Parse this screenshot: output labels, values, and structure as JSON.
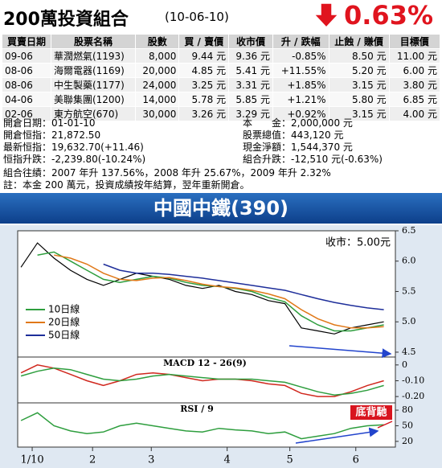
{
  "header": {
    "title": "200萬投資組合",
    "date": "(10-06-10)",
    "change": "0.63%"
  },
  "table": {
    "columns": [
      "買賣日期",
      "股票名稱",
      "股數",
      "買 / 賣價",
      "收市價",
      "升 / 跌幅",
      "止蝕 / 賺價",
      "目標價"
    ],
    "rows": [
      [
        "09-06",
        "華潤燃氣(1193)",
        "8,000",
        "9.44 元",
        "9.36 元",
        "-0.85%",
        "8.50 元",
        "11.00 元"
      ],
      [
        "08-06",
        "海爾電器(1169)",
        "20,000",
        "4.85 元",
        "5.41 元",
        "+11.55%",
        "5.20 元",
        "6.00 元"
      ],
      [
        "08-06",
        "中生製藥(1177)",
        "24,000",
        "3.25 元",
        "3.31 元",
        "+1.85%",
        "3.15 元",
        "3.80 元"
      ],
      [
        "04-06",
        "美聯集團(1200)",
        "14,000",
        "5.78 元",
        "5.85 元",
        "+1.21%",
        "5.80 元",
        "6.85 元"
      ],
      [
        "02-06",
        "東方航空(670)",
        "30,000",
        "3.26 元",
        "3.29 元",
        "+0.92%",
        "3.15 元",
        "4.00 元"
      ]
    ]
  },
  "summary": {
    "left": [
      "開倉日期：01-01-10",
      "開倉恒指：21,872.50",
      "最新恒指：19,632.70(+11.46)",
      "恒指升跌：-2,239.80(-10.24%)"
    ],
    "right": [
      "本　　金：2,000,000 元",
      "股票總值：443,120 元",
      "現金淨額：1,544,370 元",
      "組合升跌：-12,510 元(-0.63%)"
    ],
    "record": "組合往績：2007 年升 137.56%，2008 年升 25.67%，2009 年升 2.32%",
    "note": "註：本金 200 萬元，投資成績按年結算，翌年重新開倉。"
  },
  "banner": "中國中鐵(390)",
  "chart_data": [
    {
      "type": "line",
      "annotation": "收市：5.00元",
      "xlim": [
        -0.2,
        22.7
      ],
      "ylim": [
        4.42,
        6.5
      ],
      "yticks": [
        4.5,
        {
          "value": 5,
          "label": "5.0"
        },
        5.5,
        {
          "value": 6,
          "label": "6.0"
        },
        6.5
      ],
      "series": [
        {
          "color": "#000000",
          "values": [
            5.9,
            6.3,
            6.05,
            5.85,
            5.7,
            5.6,
            5.7,
            5.8,
            5.75,
            5.7,
            5.6,
            5.55,
            5.6,
            5.5,
            5.45,
            5.35,
            5.3,
            4.9,
            4.85,
            4.8,
            4.9,
            4.95,
            5.0
          ]
        },
        {
          "name": "10日線",
          "color": "#2e9e3e",
          "values": [
            null,
            6.1,
            6.15,
            6.0,
            5.85,
            5.7,
            5.65,
            5.7,
            5.75,
            5.72,
            5.65,
            5.6,
            5.58,
            5.55,
            5.5,
            5.4,
            5.33,
            5.1,
            4.95,
            4.85,
            4.85,
            4.9,
            4.95
          ]
        },
        {
          "name": "20日線",
          "color": "#e07818",
          "values": [
            null,
            null,
            6.1,
            6.05,
            5.95,
            5.8,
            5.7,
            5.68,
            5.72,
            5.73,
            5.68,
            5.62,
            5.58,
            5.56,
            5.52,
            5.46,
            5.38,
            5.2,
            5.05,
            4.95,
            4.9,
            4.9,
            4.92
          ]
        },
        {
          "name": "50日線",
          "color": "#1e2e9a",
          "values": [
            null,
            null,
            null,
            null,
            null,
            5.95,
            5.85,
            5.8,
            5.8,
            5.78,
            5.75,
            5.72,
            5.68,
            5.64,
            5.6,
            5.56,
            5.52,
            5.45,
            5.38,
            5.32,
            5.27,
            5.23,
            5.2
          ]
        }
      ]
    },
    {
      "type": "line",
      "title": "MACD 12 - 26(9)",
      "xlim": [
        -0.2,
        22.7
      ],
      "ylim": [
        -0.24,
        0.05
      ],
      "yticks": [
        0,
        {
          "value": -0.1,
          "label": "-0.10"
        },
        {
          "value": -0.2,
          "label": "-0.20"
        }
      ],
      "series": [
        {
          "color": "#d0281e",
          "values": [
            -0.05,
            0.0,
            -0.02,
            -0.06,
            -0.1,
            -0.13,
            -0.1,
            -0.06,
            -0.05,
            -0.06,
            -0.08,
            -0.1,
            -0.09,
            -0.09,
            -0.1,
            -0.12,
            -0.13,
            -0.18,
            -0.2,
            -0.2,
            -0.17,
            -0.13,
            -0.1
          ]
        },
        {
          "color": "#2e9e3e",
          "values": [
            -0.07,
            -0.04,
            -0.02,
            -0.03,
            -0.06,
            -0.09,
            -0.1,
            -0.09,
            -0.07,
            -0.06,
            -0.07,
            -0.08,
            -0.09,
            -0.09,
            -0.09,
            -0.1,
            -0.11,
            -0.14,
            -0.17,
            -0.19,
            -0.18,
            -0.16,
            -0.13
          ]
        }
      ]
    },
    {
      "type": "line",
      "title": "RSI / 9",
      "annotation": "底背馳",
      "xlim": [
        -0.2,
        22.7
      ],
      "ylim": [
        9,
        94
      ],
      "yticks": [
        20,
        50,
        80
      ],
      "xticks": [
        {
          "value": 0.68,
          "label": "1/10"
        },
        {
          "value": 4.34,
          "label": "2"
        },
        {
          "value": 7.9,
          "label": "3"
        },
        {
          "value": 12.5,
          "label": "4"
        },
        {
          "value": 16.3,
          "label": "5"
        },
        {
          "value": 20.3,
          "label": "6"
        }
      ],
      "series": [
        {
          "color": "#2e9e3e",
          "values": [
            60,
            75,
            50,
            40,
            35,
            38,
            50,
            55,
            50,
            45,
            40,
            38,
            45,
            42,
            40,
            35,
            38,
            25,
            30,
            35,
            45,
            50,
            52
          ]
        }
      ]
    }
  ]
}
